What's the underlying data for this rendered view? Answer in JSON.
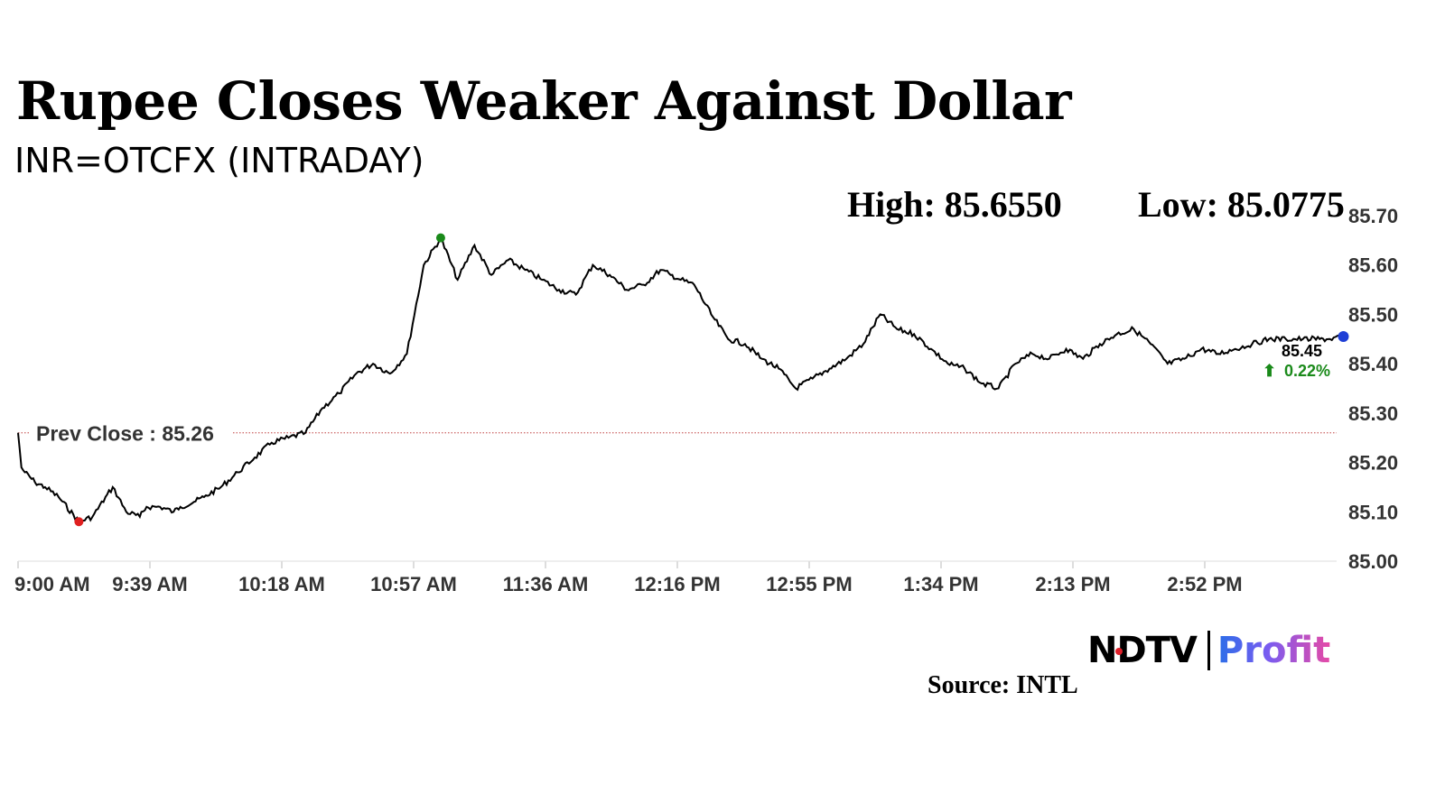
{
  "header": {
    "title": "Rupee Closes Weaker Against Dollar",
    "subtitle": "INR=OTCFX (INTRADAY)",
    "high": "High: 85.6550",
    "low": "Low: 85.0775"
  },
  "footer": {
    "brand_main": "NDTV",
    "brand_sub": "Profit",
    "source": "Source: INTL"
  },
  "colors": {
    "line": "#000000",
    "high_marker": "#1a8a1a",
    "low_marker": "#e02020",
    "last_marker": "#1f3fd6",
    "prev_close_line": "#c04040",
    "positive": "#1a8a1a"
  },
  "chart_data": {
    "type": "line",
    "x_ticks": [
      "9:00 AM",
      "9:39 AM",
      "10:18 AM",
      "10:57 AM",
      "11:36 AM",
      "12:16 PM",
      "12:55 PM",
      "1:34 PM",
      "2:13 PM",
      "2:52 PM"
    ],
    "y_ticks": [
      "85.00",
      "85.10",
      "85.20",
      "85.30",
      "85.40",
      "85.50",
      "85.60",
      "85.70"
    ],
    "ylim": [
      85.0,
      85.7
    ],
    "x_range_minutes": [
      0,
      390
    ],
    "prev_close": 85.26,
    "prev_close_label": "Prev Close : 85.26",
    "last_value_label": "85.45",
    "change_label": "0.22%",
    "high": 85.655,
    "low": 85.0775,
    "series": [
      {
        "minutes": [
          0,
          1,
          2,
          5,
          8,
          12,
          18,
          22,
          28,
          32,
          36,
          38,
          42,
          46,
          48,
          52,
          55,
          60,
          65,
          70,
          75,
          80,
          85,
          90,
          95,
          100,
          105,
          110,
          115,
          120,
          125,
          130,
          135,
          140,
          145,
          150,
          155,
          160,
          165,
          170,
          175,
          180,
          185,
          190,
          193,
          196,
          200,
          205,
          210,
          215,
          220,
          225,
          230,
          235,
          240,
          245,
          250,
          255,
          260,
          265,
          270,
          275,
          280,
          285,
          290,
          295,
          300,
          305,
          310,
          315,
          320,
          325,
          330,
          335,
          340,
          345,
          350,
          355,
          360,
          365,
          370,
          375,
          380,
          385,
          388,
          392
        ],
        "values": [
          85.26,
          85.19,
          85.18,
          85.16,
          85.15,
          85.13,
          85.08,
          85.09,
          85.15,
          85.1,
          85.09,
          85.11,
          85.11,
          85.1,
          85.11,
          85.12,
          85.13,
          85.15,
          85.18,
          85.21,
          85.24,
          85.25,
          85.26,
          85.31,
          85.34,
          85.38,
          85.4,
          85.38,
          85.42,
          85.6,
          85.655,
          85.57,
          85.64,
          85.58,
          85.61,
          85.59,
          85.57,
          85.55,
          85.54,
          85.6,
          85.58,
          85.55,
          85.56,
          85.59,
          85.58,
          85.57,
          85.56,
          85.5,
          85.45,
          85.44,
          85.41,
          85.39,
          85.35,
          85.37,
          85.39,
          85.41,
          85.44,
          85.5,
          85.47,
          85.46,
          85.43,
          85.4,
          85.39,
          85.36,
          85.35,
          85.4,
          85.42,
          85.41,
          85.43,
          85.41,
          85.44,
          85.46,
          85.47,
          85.44,
          85.4,
          85.41,
          85.43,
          85.42,
          85.43,
          85.44,
          85.45,
          85.45,
          85.45,
          85.45,
          85.45,
          85.455
        ]
      }
    ]
  }
}
